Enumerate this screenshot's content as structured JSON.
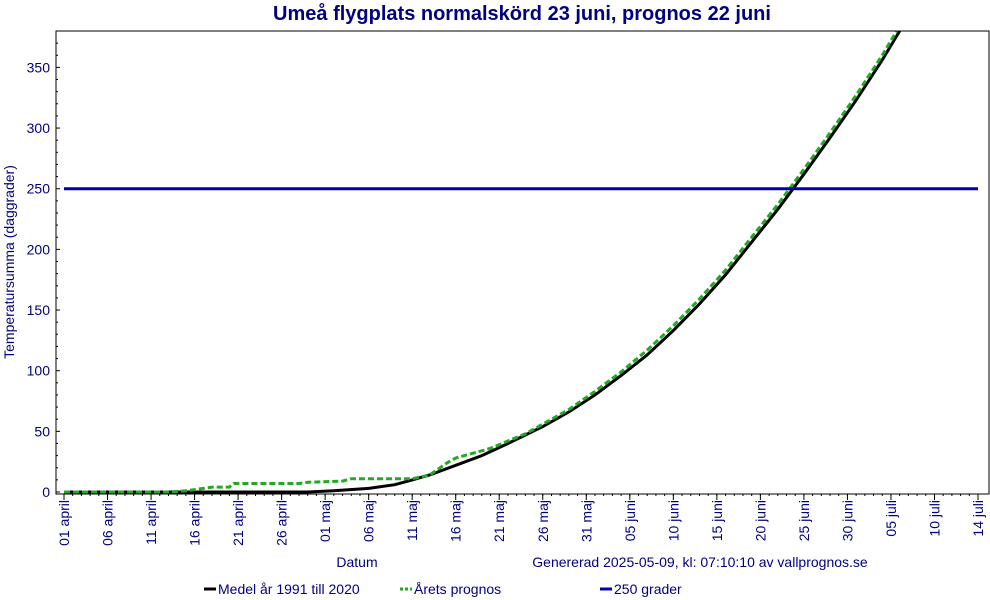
{
  "chart_data": {
    "type": "line",
    "title": "Umeå flygplats normalskörd 23 juni, prognos 22 juni",
    "xlabel": "Datum",
    "ylabel": "Temperatursumma (daggrader)",
    "ylim": [
      0,
      380
    ],
    "xlim_days": [
      0,
      105
    ],
    "yticks": [
      0,
      50,
      100,
      150,
      200,
      250,
      300,
      350
    ],
    "xticks": [
      {
        "day": 0,
        "label": "01 april"
      },
      {
        "day": 5,
        "label": "06 april"
      },
      {
        "day": 10,
        "label": "11 april"
      },
      {
        "day": 15,
        "label": "16 april"
      },
      {
        "day": 20,
        "label": "21 april"
      },
      {
        "day": 25,
        "label": "26 april"
      },
      {
        "day": 30,
        "label": "01 maj"
      },
      {
        "day": 35,
        "label": "06 maj"
      },
      {
        "day": 40,
        "label": "11 maj"
      },
      {
        "day": 45,
        "label": "16 maj"
      },
      {
        "day": 50,
        "label": "21 maj"
      },
      {
        "day": 55,
        "label": "26 maj"
      },
      {
        "day": 60,
        "label": "31 maj"
      },
      {
        "day": 65,
        "label": "05 juni"
      },
      {
        "day": 70,
        "label": "10 juni"
      },
      {
        "day": 75,
        "label": "15 juni"
      },
      {
        "day": 80,
        "label": "20 juni"
      },
      {
        "day": 85,
        "label": "25 juni"
      },
      {
        "day": 90,
        "label": "30 juni"
      },
      {
        "day": 95,
        "label": "05 juli"
      },
      {
        "day": 100,
        "label": "10 juli"
      },
      {
        "day": 105,
        "label": "14 juli"
      }
    ],
    "series": [
      {
        "name": "Medel år 1991 till 2020",
        "color": "#000000",
        "style": "solid",
        "points": [
          [
            0,
            0
          ],
          [
            10,
            0
          ],
          [
            20,
            0
          ],
          [
            28,
            0
          ],
          [
            31,
            1
          ],
          [
            35,
            3
          ],
          [
            38,
            6
          ],
          [
            40,
            10
          ],
          [
            42,
            14
          ],
          [
            45,
            22
          ],
          [
            48,
            30
          ],
          [
            51,
            40
          ],
          [
            55,
            54
          ],
          [
            58,
            66
          ],
          [
            61,
            80
          ],
          [
            64,
            96
          ],
          [
            67,
            113
          ],
          [
            70,
            133
          ],
          [
            73,
            155
          ],
          [
            76,
            179
          ],
          [
            79,
            206
          ],
          [
            82,
            233
          ],
          [
            85,
            262
          ],
          [
            88,
            292
          ],
          [
            91,
            323
          ],
          [
            94,
            356
          ],
          [
            97,
            392
          ]
        ]
      },
      {
        "name": "Årets prognos",
        "color": "#22aa22",
        "style": "dashed",
        "points": [
          [
            0,
            0
          ],
          [
            12,
            0
          ],
          [
            14,
            1
          ],
          [
            16,
            3
          ],
          [
            17,
            4
          ],
          [
            19,
            4
          ],
          [
            19.5,
            7
          ],
          [
            25,
            7
          ],
          [
            27,
            7
          ],
          [
            28,
            8
          ],
          [
            32,
            9
          ],
          [
            33,
            11
          ],
          [
            38,
            11
          ],
          [
            40,
            11
          ],
          [
            42,
            14
          ],
          [
            44,
            24
          ],
          [
            45,
            28
          ],
          [
            47,
            32
          ],
          [
            49,
            36
          ],
          [
            51,
            42
          ],
          [
            53,
            48
          ],
          [
            55,
            56
          ],
          [
            58,
            68
          ],
          [
            61,
            83
          ],
          [
            64,
            99
          ],
          [
            67,
            117
          ],
          [
            70,
            137
          ],
          [
            73,
            159
          ],
          [
            76,
            183
          ],
          [
            79,
            210
          ],
          [
            82,
            237
          ],
          [
            85,
            266
          ],
          [
            88,
            296
          ],
          [
            91,
            327
          ],
          [
            94,
            360
          ],
          [
            97,
            396
          ]
        ]
      },
      {
        "name": "250 grader",
        "color": "#0000aa",
        "style": "solid",
        "points": [
          [
            0,
            250
          ],
          [
            105,
            250
          ]
        ]
      }
    ],
    "footer": "Genererad 2025-05-09, kl: 07:10:10 av vallprognos.se"
  }
}
